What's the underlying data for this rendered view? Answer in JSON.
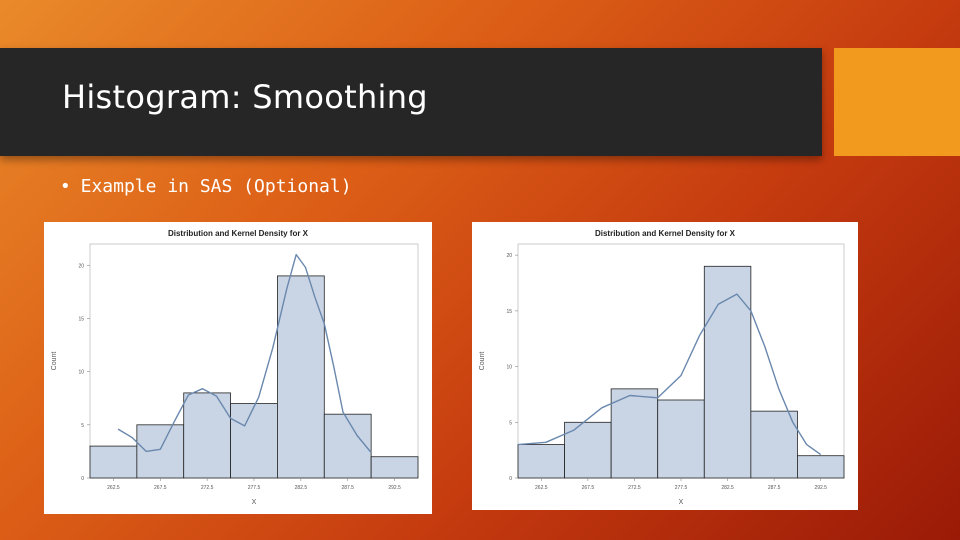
{
  "slide": {
    "title": "Histogram: Smoothing",
    "bullet": "Example in SAS (Optional)",
    "colors": {
      "title_bar": "#262626",
      "accent": "#f29a1e",
      "bar_fill": "#c9d5e5",
      "curve": "#6a88ad"
    }
  },
  "chart_data": [
    {
      "type": "bar",
      "title": "Distribution and Kernel Density for X",
      "xlabel": "X",
      "ylabel": "Count",
      "categories": [
        "262.5",
        "267.5",
        "272.5",
        "277.5",
        "282.5",
        "287.5",
        "292.5"
      ],
      "tick_labels": [
        "262.5",
        "267.5",
        "272.5",
        "277.5",
        "282.5",
        "287.5",
        "292.5"
      ],
      "x_ticks": [
        262.5,
        267.5,
        272.5,
        277.5,
        282.5,
        287.5,
        292.5
      ],
      "xlim": [
        260,
        295
      ],
      "ylim": [
        0,
        22
      ],
      "y_ticks": [
        0,
        5,
        10,
        15,
        20
      ],
      "y_tick_labels": [
        "0",
        "5",
        "10",
        "15",
        "20"
      ],
      "bin_width": 5,
      "values": [
        3,
        5,
        8,
        7,
        19,
        6,
        2
      ],
      "series": [
        {
          "type": "line",
          "x": [
            263,
            264.5,
            266,
            267.5,
            269,
            270.5,
            272,
            273.5,
            275,
            276.5,
            278,
            279.5,
            281,
            282,
            283,
            284,
            285,
            286,
            287,
            288.5,
            290
          ],
          "values": [
            4.6,
            3.8,
            2.5,
            2.7,
            5.3,
            7.8,
            8.4,
            7.7,
            5.6,
            4.9,
            7.6,
            12.2,
            17.8,
            21.0,
            19.8,
            17.0,
            14.5,
            10.5,
            6.2,
            4.0,
            2.4
          ]
        }
      ],
      "grid": false
    },
    {
      "type": "bar",
      "title": "Distribution and Kernel Density for X",
      "xlabel": "X",
      "ylabel": "Count",
      "categories": [
        "262.5",
        "267.5",
        "272.5",
        "277.5",
        "282.5",
        "287.5",
        "292.5"
      ],
      "tick_labels": [
        "262.5",
        "267.5",
        "272.5",
        "277.5",
        "282.5",
        "287.5",
        "292.5"
      ],
      "x_ticks": [
        262.5,
        267.5,
        272.5,
        277.5,
        282.5,
        287.5,
        292.5
      ],
      "xlim": [
        260,
        295
      ],
      "ylim": [
        0,
        21
      ],
      "y_ticks": [
        0,
        5,
        10,
        15,
        20
      ],
      "y_tick_labels": [
        "0",
        "5",
        "10",
        "15",
        "20"
      ],
      "bin_width": 5,
      "values": [
        3,
        5,
        8,
        7,
        19,
        6,
        2
      ],
      "series": [
        {
          "type": "line",
          "x": [
            260,
            263,
            266,
            269,
            272,
            275,
            277.5,
            279.5,
            281.5,
            283.5,
            285,
            286.5,
            288,
            289.5,
            291,
            292.5
          ],
          "values": [
            3.0,
            3.2,
            4.3,
            6.3,
            7.4,
            7.2,
            9.2,
            12.8,
            15.6,
            16.5,
            15.0,
            11.8,
            8.0,
            5.0,
            3.0,
            2.1
          ]
        }
      ],
      "grid": false
    }
  ]
}
